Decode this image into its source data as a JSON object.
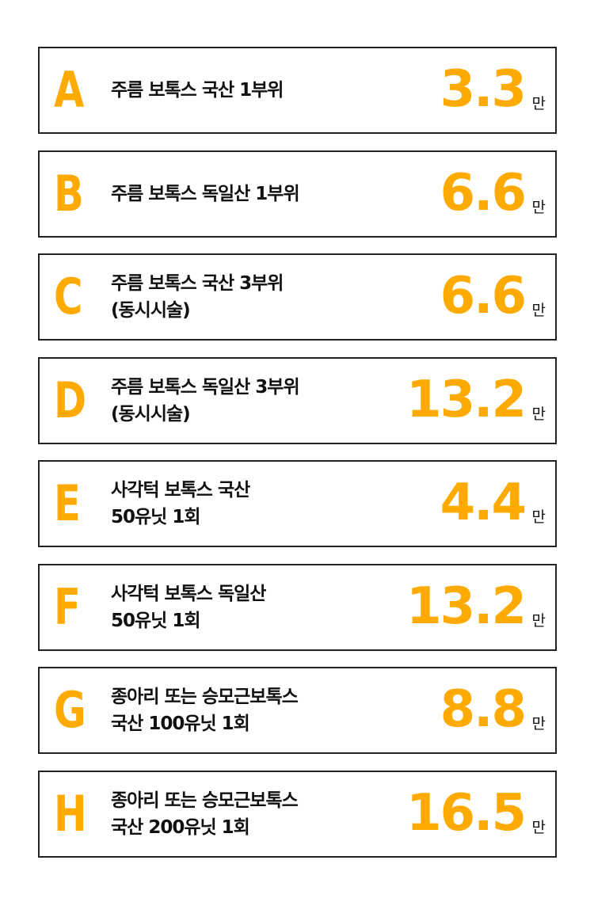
{
  "items": [
    {
      "letter": "A",
      "lines": [
        "주름 보톡스 국산 1부위"
      ],
      "price": 3.3,
      "unit": "만"
    },
    {
      "letter": "B",
      "lines": [
        "주름 보톡스 독일산 1부위"
      ],
      "price": 6.6,
      "unit": "만"
    },
    {
      "letter": "C",
      "lines": [
        "주름 보톡스 국산 3부위",
        "(동시시술)"
      ],
      "price": 6.6,
      "unit": "만"
    },
    {
      "letter": "D",
      "lines": [
        "주름 보톡스 독일산 3부위",
        "(동시시술)"
      ],
      "price": 13.2,
      "unit": "만"
    },
    {
      "letter": "E",
      "lines": [
        "사각턱 보톡스 국산",
        "50유닛 1회"
      ],
      "price": 4.4,
      "unit": "만"
    },
    {
      "letter": "F",
      "lines": [
        "사각턱 보톡스 독일산",
        "50유닛 1회"
      ],
      "price": 13.2,
      "unit": "만"
    },
    {
      "letter": "G",
      "lines": [
        "종아리 또는 승모근보톡스",
        "국산 100유닛 1회"
      ],
      "price": 8.8,
      "unit": "만"
    },
    {
      "letter": "H",
      "lines": [
        "종아리 또는 승모근보톡스",
        "국산 200유닛 1회"
      ],
      "price": 16.5,
      "unit": "만"
    }
  ]
}
